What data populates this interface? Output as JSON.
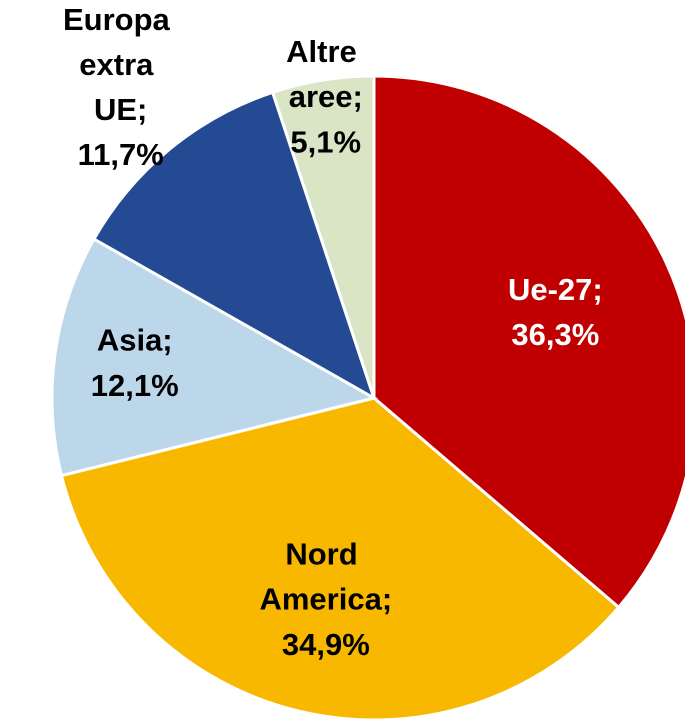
{
  "chart_data": {
    "type": "pie",
    "categories": [
      "Ue-27;",
      "Nord America;",
      "Asia;",
      "Europa extra UE;",
      "Altre aree;"
    ],
    "values": [
      36.3,
      34.9,
      12.1,
      11.7,
      5.1
    ],
    "value_labels": [
      "36,3%",
      "34,9%",
      "12,1%",
      "11,7%",
      "5,1%"
    ],
    "colors": [
      "#c00000",
      "#f9b800",
      "#bdd7ea",
      "#244a93",
      "#d9e5c5"
    ],
    "label_colors": [
      "#ffffff",
      "#000000",
      "#000000",
      "#000000",
      "#000000"
    ]
  }
}
